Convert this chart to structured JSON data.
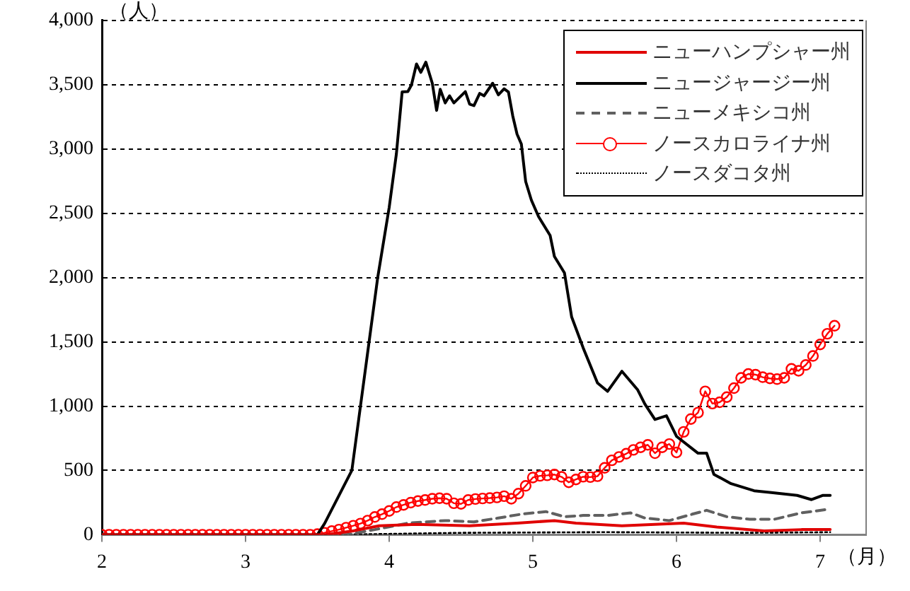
{
  "chart_data": {
    "type": "line",
    "ylabel": "（人）",
    "xlabel": "（月）",
    "x": [
      2.0,
      2.05,
      2.1,
      2.15,
      2.2,
      2.25,
      2.3,
      2.35,
      2.4,
      2.45,
      2.5,
      2.55,
      2.6,
      2.65,
      2.7,
      2.75,
      2.8,
      2.85,
      2.9,
      2.95,
      3.0,
      3.05,
      3.1,
      3.15,
      3.2,
      3.25,
      3.3,
      3.35,
      3.4,
      3.45,
      3.5,
      3.55,
      3.6,
      3.65,
      3.7,
      3.75,
      3.8,
      3.85,
      3.9,
      3.95,
      4.0,
      4.05,
      4.1,
      4.15,
      4.2,
      4.25,
      4.3,
      4.35,
      4.4,
      4.45,
      4.5,
      4.55,
      4.6,
      4.65,
      4.7,
      4.75,
      4.8,
      4.85,
      4.9,
      4.95,
      5.0,
      5.05,
      5.1,
      5.15,
      5.2,
      5.25,
      5.3,
      5.35,
      5.4,
      5.45,
      5.5,
      5.55,
      5.6,
      5.65,
      5.7,
      5.75,
      5.8,
      5.85,
      5.9,
      5.95,
      6.0,
      6.05,
      6.1,
      6.15,
      6.2,
      6.25,
      6.3,
      6.35,
      6.4,
      6.45,
      6.5,
      6.55,
      6.6,
      6.65,
      6.7,
      6.75,
      6.8,
      6.85,
      6.9,
      6.95,
      7.0,
      7.05,
      7.1
    ],
    "series": [
      {
        "name": "ニューハンプシャー州",
        "color": "#e00000",
        "line_style": "solid",
        "marker": "none",
        "x": [
          2,
          3.55,
          3.75,
          3.93,
          4.19,
          4.56,
          4.89,
          5.15,
          5.3,
          5.62,
          6.05,
          6.28,
          6.61,
          6.87,
          7.07
        ],
        "values": [
          0,
          0,
          30,
          70,
          80,
          70,
          90,
          110,
          90,
          70,
          90,
          60,
          30,
          40,
          40
        ]
      },
      {
        "name": "ニュージャージー州",
        "color": "#000000",
        "line_style": "solid",
        "marker": "none",
        "x": [
          2,
          3.5,
          3.55,
          3.74,
          3.92,
          4.0,
          4.05,
          4.09,
          4.13,
          4.155,
          4.19,
          4.22,
          4.255,
          4.3,
          4.33,
          4.355,
          4.39,
          4.42,
          4.45,
          4.53,
          4.56,
          4.59,
          4.63,
          4.66,
          4.72,
          4.76,
          4.8,
          4.83,
          4.86,
          4.89,
          4.92,
          4.95,
          4.99,
          5.04,
          5.12,
          5.15,
          5.22,
          5.27,
          5.35,
          5.45,
          5.52,
          5.62,
          5.73,
          5.78,
          5.85,
          5.93,
          6.0,
          6.15,
          6.21,
          6.26,
          6.38,
          6.54,
          6.66,
          6.84,
          6.94,
          7.02,
          7.07
        ],
        "values": [
          0,
          0,
          87,
          500,
          2000,
          2546,
          2962,
          3443,
          3446,
          3497,
          3661,
          3596,
          3675,
          3511,
          3300,
          3464,
          3358,
          3413,
          3358,
          3446,
          3348,
          3337,
          3432,
          3413,
          3511,
          3421,
          3468,
          3443,
          3257,
          3115,
          3038,
          2747,
          2601,
          2473,
          2328,
          2164,
          2036,
          1694,
          1454,
          1180,
          1115,
          1271,
          1126,
          1016,
          896,
          925,
          765,
          634,
          634,
          470,
          397,
          342,
          328,
          306,
          273,
          306,
          306
        ]
      },
      {
        "name": "ニューメキシコ州",
        "color": "#606060",
        "line_style": "dashed",
        "marker": "none",
        "x": [
          2,
          3.7,
          3.9,
          4.13,
          4.39,
          4.59,
          4.76,
          4.92,
          5.09,
          5.22,
          5.35,
          5.52,
          5.68,
          5.78,
          5.95,
          6.11,
          6.21,
          6.35,
          6.51,
          6.68,
          6.87,
          7.07
        ],
        "values": [
          0,
          0,
          40,
          90,
          110,
          100,
          130,
          160,
          180,
          140,
          150,
          150,
          170,
          130,
          110,
          160,
          190,
          140,
          120,
          120,
          170,
          200
        ]
      },
      {
        "name": "ノースカロライナ州",
        "color": "#ff0000",
        "line_style": "solid",
        "marker": "circle",
        "values": [
          0,
          0,
          0,
          0,
          0,
          0,
          0,
          0,
          0,
          0,
          0,
          0,
          0,
          0,
          0,
          0,
          0,
          0,
          0,
          0,
          0,
          0,
          0,
          0,
          0,
          0,
          0,
          0,
          0,
          0,
          5,
          15,
          28,
          40,
          55,
          70,
          87,
          110,
          138,
          160,
          185,
          215,
          232,
          250,
          262,
          270,
          280,
          284,
          280,
          245,
          240,
          270,
          278,
          282,
          285,
          290,
          300,
          280,
          320,
          380,
          445,
          458,
          462,
          468,
          450,
          408,
          430,
          451,
          448,
          455,
          520,
          579,
          605,
          630,
          660,
          680,
          699,
          634,
          680,
          705,
          640,
          800,
          900,
          950,
          1115,
          1020,
          1030,
          1070,
          1140,
          1220,
          1250,
          1245,
          1225,
          1216,
          1210,
          1220,
          1290,
          1275,
          1320,
          1390,
          1480,
          1563,
          1625
        ]
      },
      {
        "name": "ノースダコタ州",
        "color": "#000000",
        "line_style": "dotted",
        "marker": "none",
        "x": [
          2,
          3.6,
          4.5,
          5.5,
          6.5,
          7.07
        ],
        "values": [
          0,
          0,
          15,
          20,
          15,
          20
        ]
      }
    ],
    "xlim": [
      2,
      7.32
    ],
    "xticks": [
      2,
      3,
      4,
      5,
      6,
      7
    ],
    "ylim": [
      0,
      4000
    ],
    "yticks": [
      0,
      500,
      {
        "value": 1000,
        "label": "1,000"
      },
      {
        "value": 1500,
        "label": "1,500"
      },
      {
        "value": 2000,
        "label": "2,000"
      },
      {
        "value": 2500,
        "label": "2,500"
      },
      {
        "value": 3000,
        "label": "3,000"
      },
      {
        "value": 3500,
        "label": "3,500"
      },
      {
        "value": 4000,
        "label": "4,000"
      }
    ],
    "grid": "y",
    "legend": "top right"
  }
}
